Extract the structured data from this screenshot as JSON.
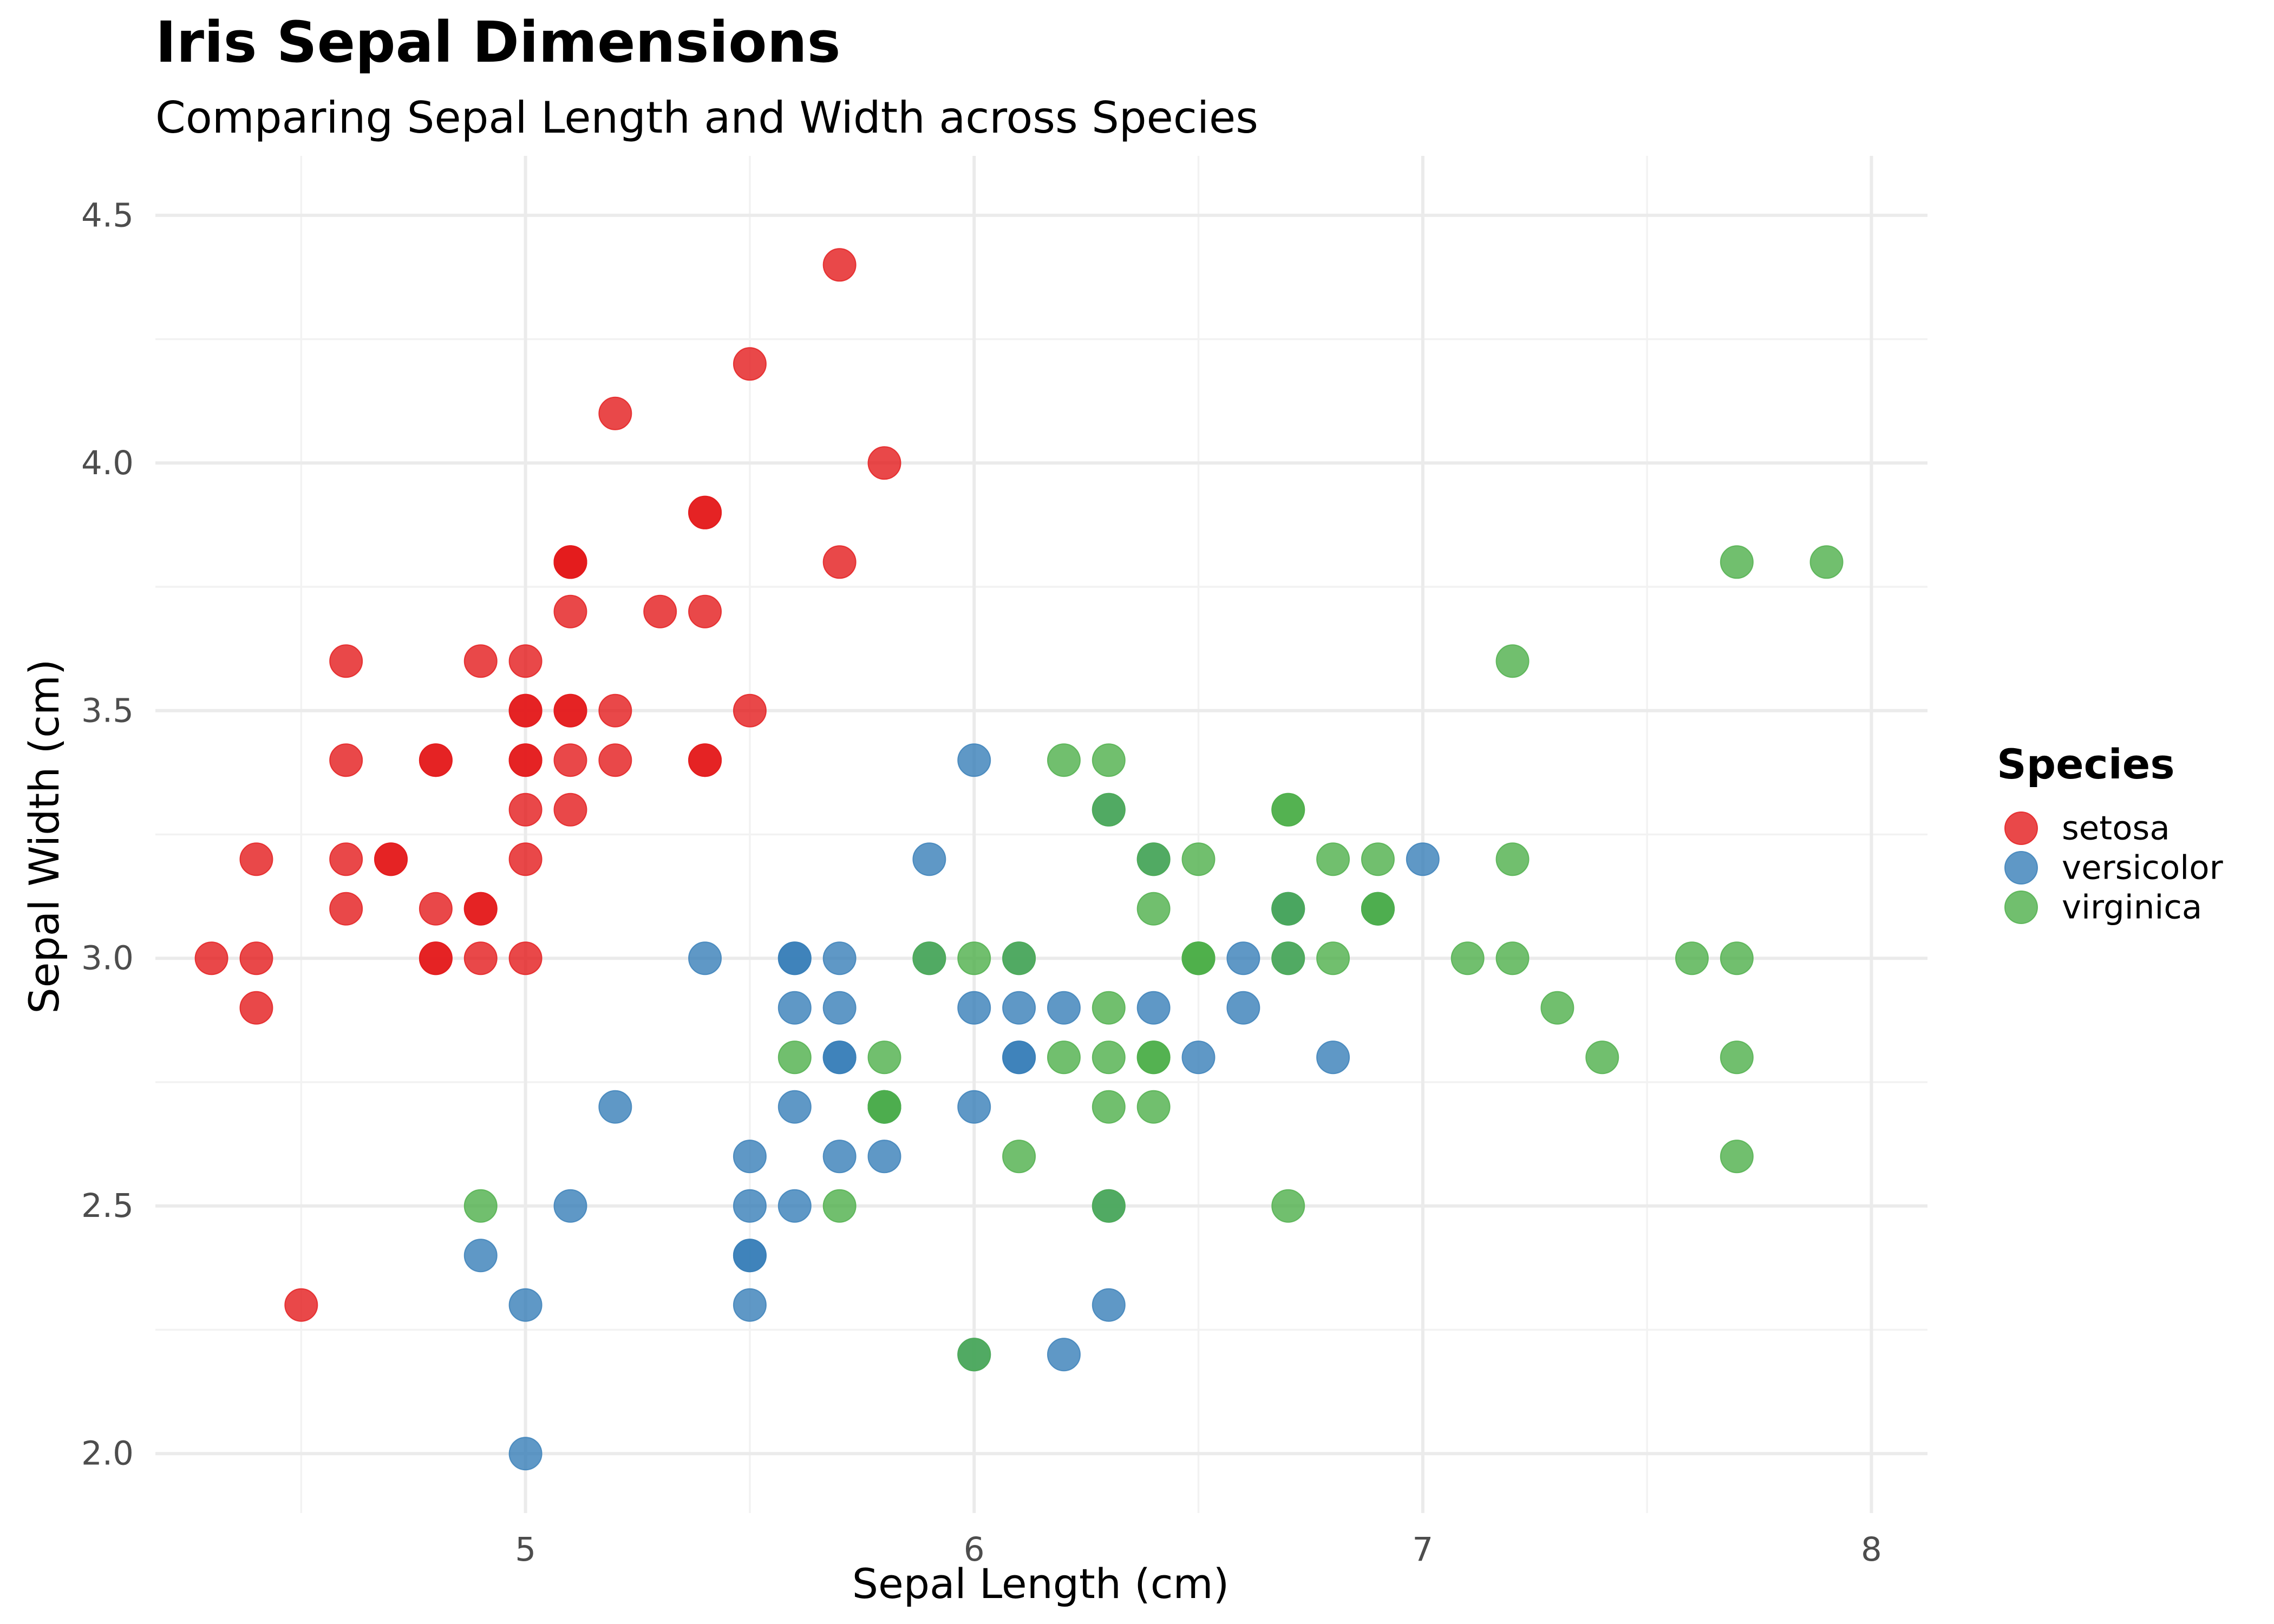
{
  "chart_data": {
    "type": "scatter",
    "title": "Iris Sepal Dimensions",
    "subtitle": "Comparing Sepal Length and Width across Species",
    "xlabel": "Sepal Length (cm)",
    "ylabel": "Sepal Width (cm)",
    "xlim": [
      4.175,
      8.125
    ],
    "ylim": [
      1.88,
      4.62
    ],
    "x_ticks": [
      5,
      6,
      7,
      8
    ],
    "x_tick_labels": [
      "5",
      "6",
      "7",
      "8"
    ],
    "x_minor_ticks": [
      4.5,
      5.5,
      6.5,
      7.5
    ],
    "y_ticks": [
      2.0,
      2.5,
      3.0,
      3.5,
      4.0,
      4.5
    ],
    "y_tick_labels": [
      "2.0",
      "2.5",
      "3.0",
      "3.5",
      "4.0",
      "4.5"
    ],
    "y_minor_ticks": [
      2.25,
      2.75,
      3.25,
      3.75,
      4.25
    ],
    "grid": true,
    "legend": {
      "title": "Species",
      "position": "right"
    },
    "series": [
      {
        "name": "setosa",
        "color": "#E41A1C",
        "points": [
          [
            5.1,
            3.5
          ],
          [
            4.9,
            3.0
          ],
          [
            4.7,
            3.2
          ],
          [
            4.6,
            3.1
          ],
          [
            5.0,
            3.6
          ],
          [
            5.4,
            3.9
          ],
          [
            4.6,
            3.4
          ],
          [
            5.0,
            3.4
          ],
          [
            4.4,
            2.9
          ],
          [
            4.9,
            3.1
          ],
          [
            5.4,
            3.7
          ],
          [
            4.8,
            3.4
          ],
          [
            4.8,
            3.0
          ],
          [
            4.3,
            3.0
          ],
          [
            5.8,
            4.0
          ],
          [
            5.7,
            4.4
          ],
          [
            5.4,
            3.9
          ],
          [
            5.1,
            3.5
          ],
          [
            5.7,
            3.8
          ],
          [
            5.1,
            3.8
          ],
          [
            5.4,
            3.4
          ],
          [
            5.1,
            3.7
          ],
          [
            4.6,
            3.6
          ],
          [
            5.1,
            3.3
          ],
          [
            4.8,
            3.4
          ],
          [
            5.0,
            3.0
          ],
          [
            5.0,
            3.4
          ],
          [
            5.2,
            3.5
          ],
          [
            5.2,
            3.4
          ],
          [
            4.7,
            3.2
          ],
          [
            4.8,
            3.1
          ],
          [
            5.4,
            3.4
          ],
          [
            5.2,
            4.1
          ],
          [
            5.5,
            4.2
          ],
          [
            4.9,
            3.1
          ],
          [
            5.0,
            3.2
          ],
          [
            5.5,
            3.5
          ],
          [
            4.9,
            3.6
          ],
          [
            4.4,
            3.0
          ],
          [
            5.1,
            3.4
          ],
          [
            5.0,
            3.5
          ],
          [
            4.5,
            2.3
          ],
          [
            4.4,
            3.2
          ],
          [
            5.0,
            3.5
          ],
          [
            5.1,
            3.8
          ],
          [
            4.8,
            3.0
          ],
          [
            5.1,
            3.8
          ],
          [
            4.6,
            3.2
          ],
          [
            5.3,
            3.7
          ],
          [
            5.0,
            3.3
          ]
        ]
      },
      {
        "name": "versicolor",
        "color": "#377EB8",
        "points": [
          [
            7.0,
            3.2
          ],
          [
            6.4,
            3.2
          ],
          [
            6.9,
            3.1
          ],
          [
            5.5,
            2.3
          ],
          [
            6.5,
            2.8
          ],
          [
            5.7,
            2.8
          ],
          [
            6.3,
            3.3
          ],
          [
            4.9,
            2.4
          ],
          [
            6.6,
            2.9
          ],
          [
            5.2,
            2.7
          ],
          [
            5.0,
            2.0
          ],
          [
            5.9,
            3.0
          ],
          [
            6.0,
            2.2
          ],
          [
            6.1,
            2.9
          ],
          [
            5.6,
            2.9
          ],
          [
            6.7,
            3.1
          ],
          [
            5.6,
            3.0
          ],
          [
            5.8,
            2.7
          ],
          [
            6.2,
            2.2
          ],
          [
            5.6,
            2.5
          ],
          [
            5.9,
            3.2
          ],
          [
            6.1,
            2.8
          ],
          [
            6.3,
            2.5
          ],
          [
            6.1,
            2.8
          ],
          [
            6.4,
            2.9
          ],
          [
            6.6,
            3.0
          ],
          [
            6.8,
            2.8
          ],
          [
            6.7,
            3.0
          ],
          [
            6.0,
            2.9
          ],
          [
            5.7,
            2.6
          ],
          [
            5.5,
            2.4
          ],
          [
            5.5,
            2.4
          ],
          [
            5.8,
            2.7
          ],
          [
            6.0,
            2.7
          ],
          [
            5.4,
            3.0
          ],
          [
            6.0,
            3.4
          ],
          [
            6.7,
            3.1
          ],
          [
            6.3,
            2.3
          ],
          [
            5.6,
            3.0
          ],
          [
            5.5,
            2.5
          ],
          [
            5.5,
            2.6
          ],
          [
            6.1,
            3.0
          ],
          [
            5.8,
            2.6
          ],
          [
            5.0,
            2.3
          ],
          [
            5.6,
            2.7
          ],
          [
            5.7,
            3.0
          ],
          [
            5.7,
            2.9
          ],
          [
            6.2,
            2.9
          ],
          [
            5.1,
            2.5
          ],
          [
            5.7,
            2.8
          ]
        ]
      },
      {
        "name": "virginica",
        "color": "#4DAF4A",
        "points": [
          [
            6.3,
            3.3
          ],
          [
            5.8,
            2.7
          ],
          [
            7.1,
            3.0
          ],
          [
            6.3,
            2.9
          ],
          [
            6.5,
            3.0
          ],
          [
            7.6,
            3.0
          ],
          [
            4.9,
            2.5
          ],
          [
            7.3,
            2.9
          ],
          [
            6.7,
            2.5
          ],
          [
            7.2,
            3.6
          ],
          [
            6.5,
            3.2
          ],
          [
            6.4,
            2.7
          ],
          [
            6.8,
            3.0
          ],
          [
            5.7,
            2.5
          ],
          [
            5.8,
            2.8
          ],
          [
            6.4,
            3.2
          ],
          [
            6.5,
            3.0
          ],
          [
            7.7,
            3.8
          ],
          [
            7.7,
            2.6
          ],
          [
            6.0,
            2.2
          ],
          [
            6.9,
            3.2
          ],
          [
            5.6,
            2.8
          ],
          [
            7.7,
            2.8
          ],
          [
            6.3,
            2.7
          ],
          [
            6.7,
            3.3
          ],
          [
            7.2,
            3.2
          ],
          [
            6.2,
            2.8
          ],
          [
            6.1,
            3.0
          ],
          [
            6.4,
            2.8
          ],
          [
            7.2,
            3.0
          ],
          [
            7.4,
            2.8
          ],
          [
            7.9,
            3.8
          ],
          [
            6.4,
            2.8
          ],
          [
            6.3,
            2.8
          ],
          [
            6.1,
            2.6
          ],
          [
            7.7,
            3.0
          ],
          [
            6.3,
            3.4
          ],
          [
            6.4,
            3.1
          ],
          [
            6.0,
            3.0
          ],
          [
            6.9,
            3.1
          ],
          [
            6.7,
            3.1
          ],
          [
            6.9,
            3.1
          ],
          [
            5.8,
            2.7
          ],
          [
            6.8,
            3.2
          ],
          [
            6.7,
            3.3
          ],
          [
            6.7,
            3.0
          ],
          [
            6.3,
            2.5
          ],
          [
            6.5,
            3.0
          ],
          [
            6.2,
            3.4
          ],
          [
            5.9,
            3.0
          ]
        ]
      }
    ]
  }
}
